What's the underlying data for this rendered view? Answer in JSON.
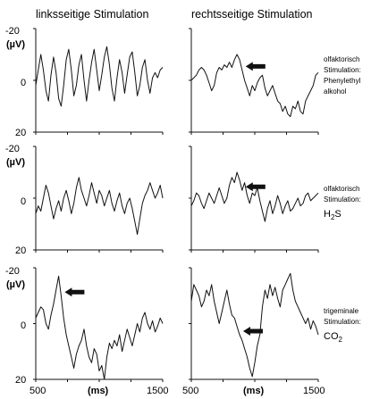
{
  "figure": {
    "column_titles": [
      "linksseitige Stimulation",
      "rechtsseitige Stimulation"
    ],
    "y_unit": "(µV)",
    "x_unit": "(ms)",
    "y_tick_labels": [
      "-20",
      "0",
      "20"
    ],
    "x_tick_labels": [
      "500",
      "1500"
    ],
    "rows": [
      {
        "stimulus_lines": [
          "olfaktorisch",
          "Stimulation:",
          "Phenylethyl",
          "alkohol"
        ]
      },
      {
        "stimulus_lines": [
          "olfaktorisch",
          "Stimulation:",
          "H2S"
        ]
      },
      {
        "stimulus_lines": [
          "trigeminale",
          "Stimulation:",
          "CO2"
        ]
      }
    ]
  },
  "chart_data": {
    "type": "line",
    "panel_layout": {
      "rows": 3,
      "cols": 2
    },
    "x_unit": "ms",
    "y_unit": "µV",
    "xlim": [
      500,
      1500
    ],
    "ylim": [
      20,
      -20
    ],
    "y_inverted": true,
    "panels": [
      {
        "row": 0,
        "col": 0,
        "side": "linksseitige Stimulation",
        "stimulus": "olfaktorisch Stimulation: Phenylethyl alkohol",
        "x": [
          500,
          520,
          540,
          560,
          580,
          600,
          620,
          640,
          660,
          680,
          700,
          720,
          740,
          760,
          780,
          800,
          820,
          840,
          860,
          880,
          900,
          920,
          940,
          960,
          980,
          1000,
          1020,
          1040,
          1060,
          1080,
          1100,
          1120,
          1140,
          1160,
          1180,
          1200,
          1220,
          1240,
          1260,
          1280,
          1300,
          1320,
          1340,
          1360,
          1380,
          1400,
          1420,
          1440,
          1460,
          1480,
          1500
        ],
        "y": [
          2,
          -4,
          -10,
          -4,
          4,
          8,
          -2,
          -9,
          -3,
          7,
          10,
          2,
          -8,
          -12,
          -4,
          6,
          2,
          -6,
          -10,
          0,
          8,
          0,
          -7,
          -12,
          -4,
          4,
          -2,
          -9,
          -13,
          -6,
          3,
          8,
          -1,
          -8,
          -3,
          5,
          -2,
          -9,
          -11,
          -3,
          6,
          2,
          -5,
          -8,
          0,
          5,
          -1,
          -3,
          -1,
          -4,
          -5
        ],
        "arrow_x": null
      },
      {
        "row": 0,
        "col": 1,
        "side": "rechtsseitige Stimulation",
        "stimulus": "olfaktorisch Stimulation: Phenylethyl alkohol",
        "x": [
          500,
          520,
          540,
          560,
          580,
          600,
          620,
          640,
          660,
          680,
          700,
          720,
          740,
          760,
          780,
          800,
          820,
          840,
          860,
          880,
          900,
          920,
          940,
          960,
          980,
          1000,
          1020,
          1040,
          1060,
          1080,
          1100,
          1120,
          1140,
          1160,
          1180,
          1200,
          1220,
          1240,
          1260,
          1280,
          1300,
          1320,
          1340,
          1360,
          1380,
          1400,
          1420,
          1440,
          1460,
          1480,
          1500
        ],
        "y": [
          0,
          -1,
          -2,
          -4,
          -5,
          -4,
          -2,
          1,
          4,
          2,
          -3,
          -5,
          -4,
          -6,
          -5,
          -7,
          -5,
          -8,
          -10,
          -8,
          -4,
          0,
          3,
          6,
          2,
          4,
          1,
          -1,
          -2,
          3,
          6,
          4,
          2,
          5,
          8,
          9,
          12,
          10,
          13,
          14,
          10,
          11,
          8,
          12,
          13,
          8,
          6,
          4,
          2,
          -2,
          -3
        ],
        "arrow_x": 910
      },
      {
        "row": 1,
        "col": 0,
        "side": "linksseitige Stimulation",
        "stimulus": "olfaktorisch Stimulation: H2S",
        "x": [
          500,
          520,
          540,
          560,
          580,
          600,
          620,
          640,
          660,
          680,
          700,
          720,
          740,
          760,
          780,
          800,
          820,
          840,
          860,
          880,
          900,
          920,
          940,
          960,
          980,
          1000,
          1020,
          1040,
          1060,
          1080,
          1100,
          1120,
          1140,
          1160,
          1180,
          1200,
          1220,
          1240,
          1260,
          1280,
          1300,
          1320,
          1340,
          1360,
          1380,
          1400,
          1420,
          1440,
          1460,
          1480,
          1500
        ],
        "y": [
          6,
          3,
          5,
          0,
          -5,
          -2,
          3,
          8,
          4,
          1,
          5,
          0,
          -3,
          1,
          6,
          2,
          -4,
          -8,
          -3,
          0,
          3,
          -1,
          -6,
          -2,
          2,
          -3,
          -1,
          3,
          0,
          -3,
          2,
          5,
          1,
          -2,
          3,
          6,
          2,
          0,
          4,
          9,
          14,
          8,
          2,
          -1,
          -3,
          -6,
          -3,
          0,
          -2,
          -5,
          0
        ],
        "arrow_x": null
      },
      {
        "row": 1,
        "col": 1,
        "side": "rechtsseitige Stimulation",
        "stimulus": "olfaktorisch Stimulation: H2S",
        "x": [
          500,
          520,
          540,
          560,
          580,
          600,
          620,
          640,
          660,
          680,
          700,
          720,
          740,
          760,
          780,
          800,
          820,
          840,
          860,
          880,
          900,
          920,
          940,
          960,
          980,
          1000,
          1020,
          1040,
          1060,
          1080,
          1100,
          1120,
          1140,
          1160,
          1180,
          1200,
          1220,
          1240,
          1260,
          1280,
          1300,
          1320,
          1340,
          1360,
          1380,
          1400,
          1420,
          1440,
          1460,
          1480,
          1500
        ],
        "y": [
          3,
          1,
          -2,
          -1,
          2,
          4,
          1,
          -2,
          0,
          2,
          -1,
          -4,
          -1,
          2,
          0,
          -5,
          -8,
          -6,
          -10,
          -7,
          -3,
          -6,
          -1,
          2,
          -2,
          -1,
          -4,
          1,
          5,
          9,
          4,
          1,
          6,
          3,
          -1,
          2,
          6,
          3,
          1,
          5,
          4,
          2,
          0,
          3,
          2,
          -1,
          -2,
          1,
          0,
          -1,
          -2
        ],
        "arrow_x": 910
      },
      {
        "row": 2,
        "col": 0,
        "side": "linksseitige Stimulation",
        "stimulus": "trigeminale Stimulation: CO2",
        "x": [
          500,
          520,
          540,
          560,
          580,
          600,
          620,
          640,
          660,
          680,
          700,
          720,
          740,
          760,
          780,
          800,
          820,
          840,
          860,
          880,
          900,
          920,
          940,
          960,
          980,
          1000,
          1020,
          1040,
          1060,
          1080,
          1100,
          1120,
          1140,
          1160,
          1180,
          1200,
          1220,
          1240,
          1260,
          1280,
          1300,
          1320,
          1340,
          1360,
          1380,
          1400,
          1420,
          1440,
          1460,
          1480,
          1500
        ],
        "y": [
          -2,
          -4,
          -6,
          -5,
          0,
          2,
          -3,
          -7,
          -12,
          -17,
          -10,
          -2,
          4,
          8,
          12,
          16,
          11,
          8,
          6,
          2,
          8,
          12,
          14,
          9,
          11,
          17,
          15,
          20,
          12,
          7,
          9,
          6,
          8,
          4,
          10,
          6,
          2,
          5,
          8,
          4,
          0,
          3,
          -2,
          -4,
          0,
          2,
          -1,
          3,
          1,
          -2,
          0
        ],
        "arrow_x": 700
      },
      {
        "row": 2,
        "col": 1,
        "side": "rechtsseitige Stimulation",
        "stimulus": "trigeminale Stimulation: CO2",
        "x": [
          500,
          520,
          540,
          560,
          580,
          600,
          620,
          640,
          660,
          680,
          700,
          720,
          740,
          760,
          780,
          800,
          820,
          840,
          860,
          880,
          900,
          920,
          940,
          960,
          980,
          1000,
          1020,
          1040,
          1060,
          1080,
          1100,
          1120,
          1140,
          1160,
          1180,
          1200,
          1220,
          1240,
          1260,
          1280,
          1300,
          1320,
          1340,
          1360,
          1380,
          1400,
          1420,
          1440,
          1460,
          1480,
          1500
        ],
        "y": [
          -8,
          -14,
          -12,
          -10,
          -6,
          -8,
          -12,
          -10,
          -14,
          -8,
          -4,
          0,
          -4,
          -8,
          -12,
          -7,
          -3,
          -2,
          1,
          4,
          6,
          9,
          12,
          16,
          19,
          14,
          8,
          4,
          -6,
          -12,
          -9,
          -14,
          -10,
          -13,
          -9,
          -6,
          -12,
          -14,
          -16,
          -18,
          -12,
          -8,
          -6,
          -4,
          -2,
          0,
          -2,
          2,
          -1,
          1,
          4
        ],
        "arrow_x": 880
      }
    ]
  }
}
